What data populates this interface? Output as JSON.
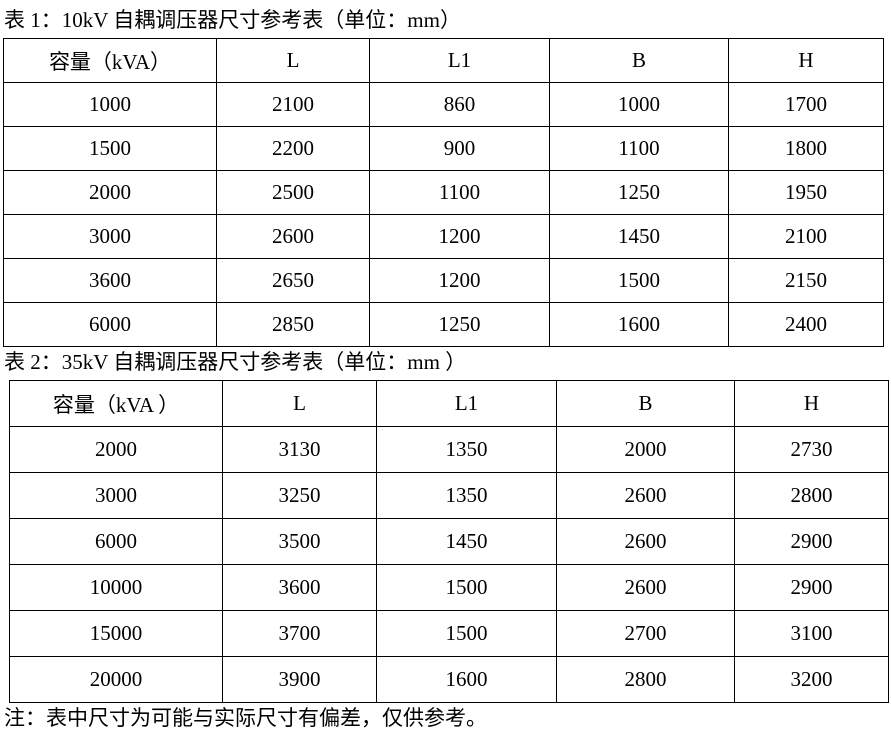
{
  "table1": {
    "caption": "表 1：10kV 自耦调压器尺寸参考表（单位：mm）",
    "headers": [
      "容量（kVA）",
      "L",
      "L1",
      "B",
      "H"
    ],
    "rows": [
      [
        "1000",
        "2100",
        "860",
        "1000",
        "1700"
      ],
      [
        "1500",
        "2200",
        "900",
        "1100",
        "1800"
      ],
      [
        "2000",
        "2500",
        "1100",
        "1250",
        "1950"
      ],
      [
        "3000",
        "2600",
        "1200",
        "1450",
        "2100"
      ],
      [
        "3600",
        "2650",
        "1200",
        "1500",
        "2150"
      ],
      [
        "6000",
        "2850",
        "1250",
        "1600",
        "2400"
      ]
    ]
  },
  "table2": {
    "caption": "表 2：35kV 自耦调压器尺寸参考表（单位：mm ）",
    "headers": [
      "容量（kVA ）",
      "L",
      "L1",
      "B",
      "H"
    ],
    "rows": [
      [
        "2000",
        "3130",
        "1350",
        "2000",
        "2730"
      ],
      [
        "3000",
        "3250",
        "1350",
        "2600",
        "2800"
      ],
      [
        "6000",
        "3500",
        "1450",
        "2600",
        "2900"
      ],
      [
        "10000",
        "3600",
        "1500",
        "2600",
        "2900"
      ],
      [
        "15000",
        "3700",
        "1500",
        "2700",
        "3100"
      ],
      [
        "20000",
        "3900",
        "1600",
        "2800",
        "3200"
      ]
    ]
  },
  "note": "注：表中尺寸为可能与实际尺寸有偏差，仅供参考。"
}
